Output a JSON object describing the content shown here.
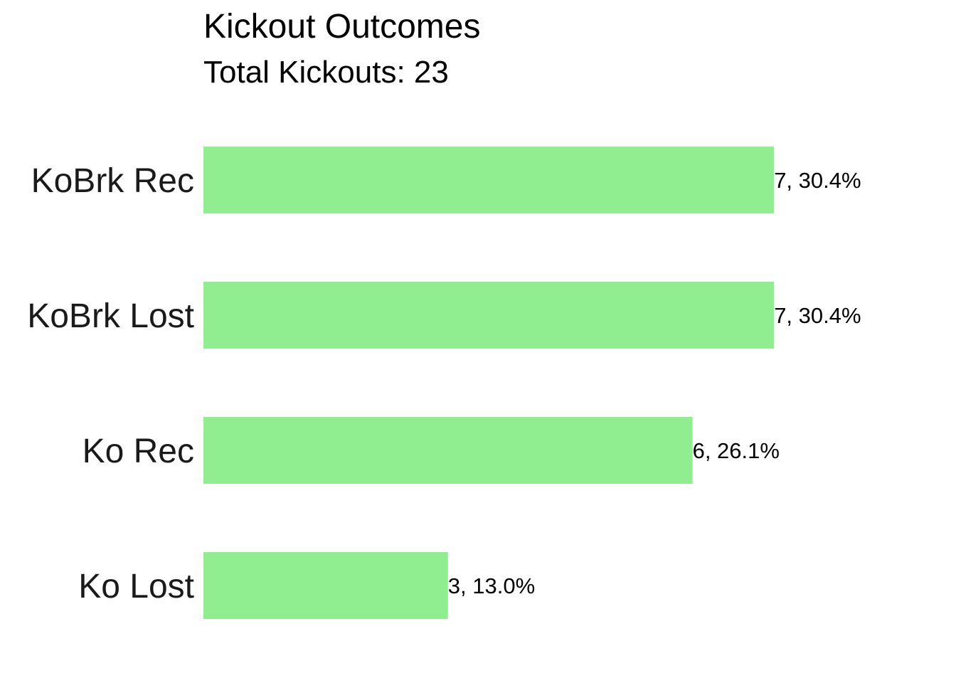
{
  "chart_data": {
    "type": "bar",
    "orientation": "horizontal",
    "title": "Kickout Outcomes",
    "subtitle": "Total Kickouts: 23",
    "categories": [
      "KoBrk Rec",
      "KoBrk Lost",
      "Ko Rec",
      "Ko Lost"
    ],
    "values": [
      7,
      7,
      6,
      3
    ],
    "data_labels": [
      "7, 30.4%",
      "7, 30.4%",
      "6, 26.1%",
      "3, 13.0%"
    ],
    "xlim": [
      0,
      7
    ],
    "xlabel": "",
    "ylabel": "",
    "grid": false,
    "bar_color": "#90EE90"
  }
}
